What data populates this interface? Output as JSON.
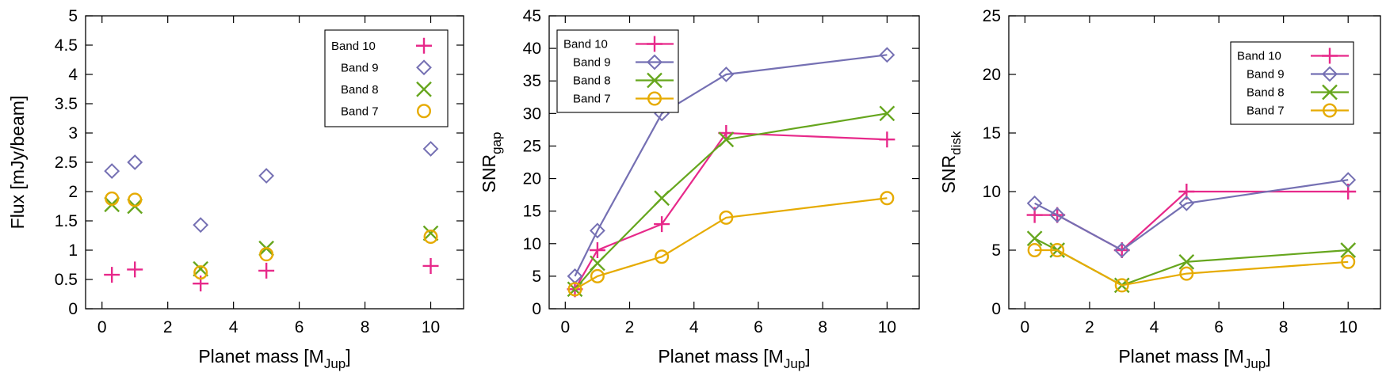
{
  "colors": {
    "band10": "#e7298a",
    "band9": "#7570b3",
    "band8": "#66a61e",
    "band7": "#e6ab02",
    "axis": "#000000"
  },
  "chart_data": [
    {
      "type": "scatter",
      "title": "",
      "xlabel": "Planet mass [M",
      "xlabel_sub": "Jup",
      "xlabel_end": "]",
      "ylabel": "Flux [mJy/beam]",
      "ylabel_sub": "",
      "xlim": [
        -0.5,
        11
      ],
      "ylim": [
        0,
        5
      ],
      "xticks": [
        0,
        2,
        4,
        6,
        8,
        10
      ],
      "xtick_labels": [
        "0",
        "2",
        "4",
        "6",
        "8",
        "10"
      ],
      "yticks": [
        0,
        0.5,
        1,
        1.5,
        2,
        2.5,
        3,
        3.5,
        4,
        4.5,
        5
      ],
      "ytick_labels": [
        "0",
        "0.5",
        "1",
        "1.5",
        "2",
        "2.5",
        "3",
        "3.5",
        "4",
        "4.5",
        "5"
      ],
      "legend_position": "top-right",
      "x": [
        0.3,
        1,
        3,
        5,
        10
      ],
      "series": [
        {
          "name": "Band 10",
          "marker": "plus",
          "color_key": "band10",
          "values": [
            0.58,
            0.67,
            0.43,
            0.65,
            0.73
          ]
        },
        {
          "name": "Band 9",
          "marker": "diamond",
          "color_key": "band9",
          "values": [
            2.35,
            2.5,
            1.43,
            2.27,
            2.73
          ]
        },
        {
          "name": "Band 8",
          "marker": "cross",
          "color_key": "band8",
          "values": [
            1.78,
            1.75,
            0.68,
            1.03,
            1.29
          ]
        },
        {
          "name": "Band 7",
          "marker": "circle",
          "color_key": "band7",
          "values": [
            1.88,
            1.86,
            0.62,
            0.93,
            1.23
          ]
        }
      ]
    },
    {
      "type": "line",
      "title": "",
      "xlabel": "Planet mass [M",
      "xlabel_sub": "Jup",
      "xlabel_end": "]",
      "ylabel": "SNR",
      "ylabel_sub": "gap",
      "xlim": [
        -0.5,
        11
      ],
      "ylim": [
        0,
        45
      ],
      "xticks": [
        0,
        2,
        4,
        6,
        8,
        10
      ],
      "xtick_labels": [
        "0",
        "2",
        "4",
        "6",
        "8",
        "10"
      ],
      "yticks": [
        0,
        5,
        10,
        15,
        20,
        25,
        30,
        35,
        40,
        45
      ],
      "ytick_labels": [
        "0",
        "5",
        "10",
        "15",
        "20",
        "25",
        "30",
        "35",
        "40",
        "45"
      ],
      "legend_position": "top-left",
      "x": [
        0.3,
        1,
        3,
        5,
        10
      ],
      "series": [
        {
          "name": "Band 10",
          "marker": "plus",
          "color_key": "band10",
          "values": [
            3,
            9,
            13,
            27,
            26
          ]
        },
        {
          "name": "Band 9",
          "marker": "diamond",
          "color_key": "band9",
          "values": [
            5,
            12,
            30,
            36,
            39
          ]
        },
        {
          "name": "Band 8",
          "marker": "cross",
          "color_key": "band8",
          "values": [
            3,
            7,
            17,
            26,
            30
          ]
        },
        {
          "name": "Band 7",
          "marker": "circle",
          "color_key": "band7",
          "values": [
            3,
            5,
            8,
            14,
            17
          ]
        }
      ]
    },
    {
      "type": "line",
      "title": "",
      "xlabel": "Planet mass [M",
      "xlabel_sub": "Jup",
      "xlabel_end": "]",
      "ylabel": "SNR",
      "ylabel_sub": "disk",
      "xlim": [
        -0.5,
        11
      ],
      "ylim": [
        0,
        25
      ],
      "xticks": [
        0,
        2,
        4,
        6,
        8,
        10
      ],
      "xtick_labels": [
        "0",
        "2",
        "4",
        "6",
        "8",
        "10"
      ],
      "yticks": [
        0,
        5,
        10,
        15,
        20,
        25
      ],
      "ytick_labels": [
        "0",
        "5",
        "10",
        "15",
        "20",
        "25"
      ],
      "legend_position": "top-right",
      "x": [
        0.3,
        1,
        3,
        5,
        10
      ],
      "series": [
        {
          "name": "Band 10",
          "marker": "plus",
          "color_key": "band10",
          "values": [
            8,
            8,
            5,
            10,
            10
          ]
        },
        {
          "name": "Band 9",
          "marker": "diamond",
          "color_key": "band9",
          "values": [
            9,
            8,
            5,
            9,
            11
          ]
        },
        {
          "name": "Band 8",
          "marker": "cross",
          "color_key": "band8",
          "values": [
            6,
            5,
            2,
            4,
            5
          ]
        },
        {
          "name": "Band 7",
          "marker": "circle",
          "color_key": "band7",
          "values": [
            5,
            5,
            2,
            3,
            4
          ]
        }
      ]
    }
  ]
}
